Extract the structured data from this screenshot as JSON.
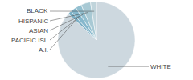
{
  "chart_data": {
    "type": "pie",
    "categories": [
      "WHITE",
      "A.I.",
      "PACIFIC ISL",
      "ASIAN",
      "HISPANIC",
      "BLACK"
    ],
    "values": [
      87,
      1.5,
      2.5,
      2.5,
      4,
      2.5
    ],
    "colors": [
      "#cdd8df",
      "#7aafc5",
      "#85b7cc",
      "#92bfcf",
      "#a8c9d4",
      "#c0d4db"
    ]
  }
}
